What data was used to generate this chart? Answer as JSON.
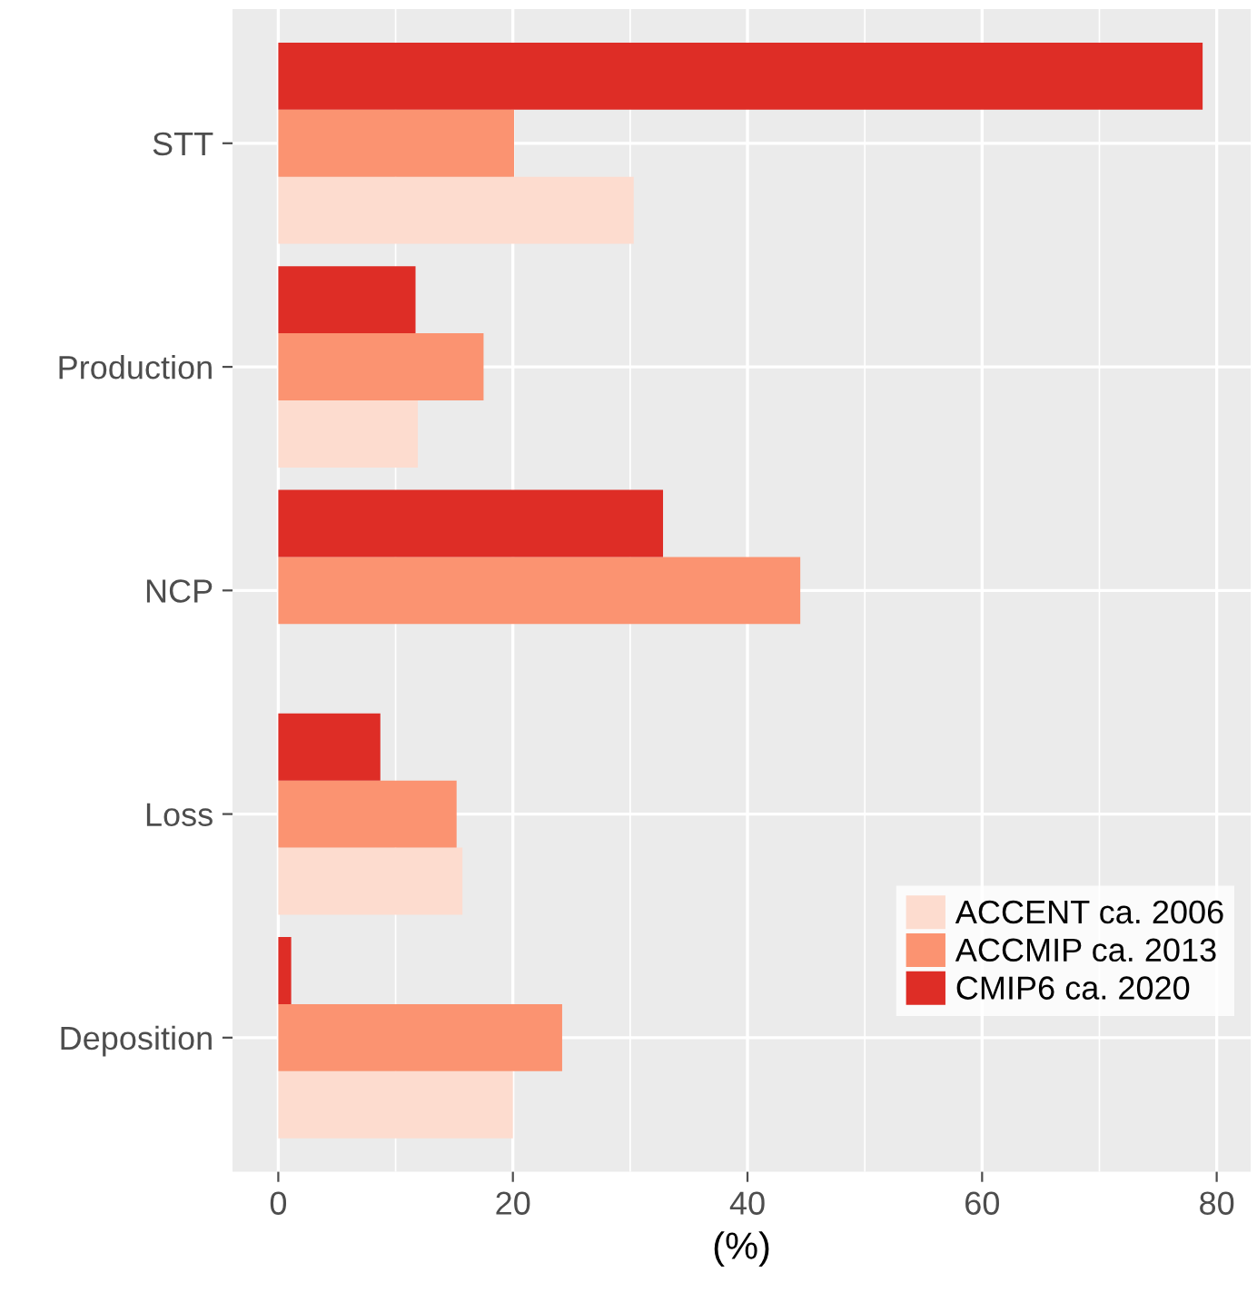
{
  "chart_data": {
    "type": "bar",
    "orientation": "horizontal",
    "xlabel": "(%)",
    "categories": [
      "STT",
      "Production",
      "NCP",
      "Loss",
      "Deposition"
    ],
    "series": [
      {
        "name": "ACCENT ca. 2006",
        "color": "#fddccf",
        "values": [
          30.3,
          11.9,
          null,
          15.7,
          20.0
        ]
      },
      {
        "name": "ACCMIP ca. 2013",
        "color": "#fb9371",
        "values": [
          20.1,
          17.5,
          44.5,
          15.2,
          24.2
        ]
      },
      {
        "name": "CMIP6 ca. 2020",
        "color": "#de2d26",
        "values": [
          78.8,
          11.7,
          32.8,
          8.7,
          1.1
        ]
      }
    ],
    "xlim": [
      -3.9,
      82.9
    ],
    "xticks": [
      0,
      20,
      40,
      60,
      80
    ],
    "grid": true,
    "legend": "bottom right"
  }
}
